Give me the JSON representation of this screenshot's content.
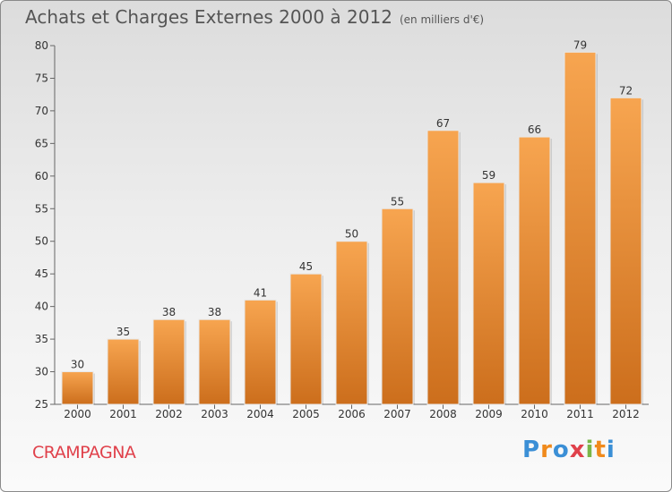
{
  "header": {
    "title": "Achats et Charges Externes 2000 à 2012",
    "subtitle": "(en milliers d'€)"
  },
  "footer": {
    "commune": "CRAMPAGNA",
    "brand": "Proxiti",
    "brand_letters": [
      {
        "ch": "P",
        "color": "#3b8fd6"
      },
      {
        "ch": "r",
        "color": "#f08a1c"
      },
      {
        "ch": "o",
        "color": "#3b8fd6"
      },
      {
        "ch": "x",
        "color": "#e0414b"
      },
      {
        "ch": "i",
        "color": "#7ab648"
      },
      {
        "ch": "t",
        "color": "#f08a1c"
      },
      {
        "ch": "i",
        "color": "#3b8fd6"
      }
    ]
  },
  "chart_data": {
    "type": "bar",
    "categories": [
      "2000",
      "2001",
      "2002",
      "2003",
      "2004",
      "2005",
      "2006",
      "2007",
      "2008",
      "2009",
      "2010",
      "2011",
      "2012"
    ],
    "values": [
      30,
      35,
      38,
      38,
      41,
      45,
      50,
      55,
      67,
      59,
      66,
      79,
      72
    ],
    "title": "Achats et Charges Externes 2000 à 2012",
    "subtitle": "(en milliers d'€)",
    "ylim": [
      25,
      80
    ],
    "yticks": [
      25,
      30,
      35,
      40,
      45,
      50,
      55,
      60,
      65,
      70,
      75,
      80
    ],
    "grid": false,
    "bar_color_top": "#f7a550",
    "bar_color_bottom": "#cc6e1c"
  }
}
